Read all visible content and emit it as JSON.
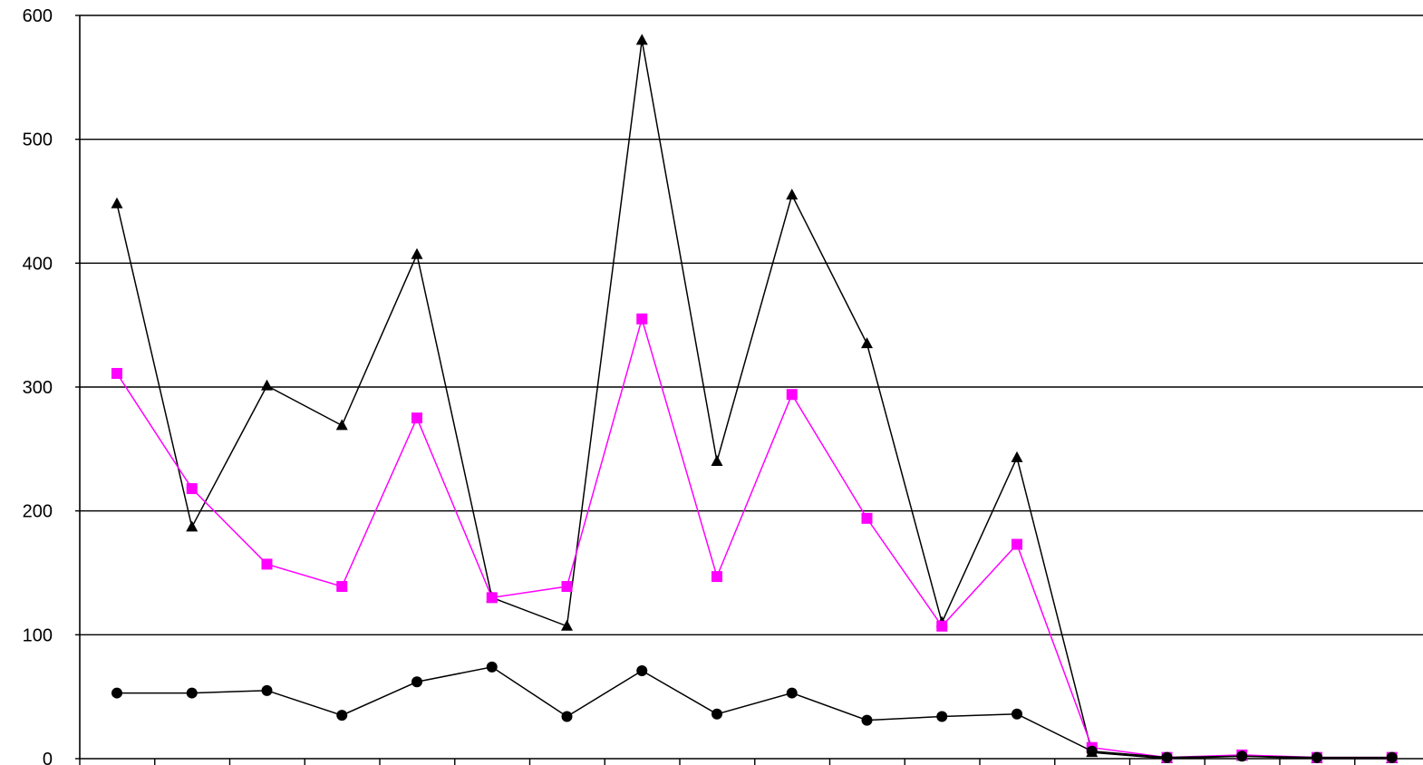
{
  "chart_data": {
    "type": "line",
    "title": "",
    "xlabel": "",
    "ylabel": "",
    "ylim": [
      0,
      600
    ],
    "yticks": [
      0,
      100,
      200,
      300,
      400,
      500,
      600
    ],
    "ytick_labels": [
      "0",
      "100",
      "200",
      "300",
      "400",
      "500",
      "600"
    ],
    "x": [
      1,
      2,
      3,
      4,
      5,
      6,
      7,
      8,
      9,
      10,
      11,
      12,
      13,
      14,
      15,
      16,
      17,
      18
    ],
    "grid": true,
    "legend": "none",
    "series": [
      {
        "marker": "triangle",
        "color": "#000000",
        "values": [
          448,
          187,
          301,
          269,
          407,
          130,
          107,
          580,
          240,
          455,
          335,
          110,
          243,
          5,
          0,
          2,
          0,
          0
        ]
      },
      {
        "marker": "square",
        "color": "#ff00ff",
        "values": [
          311,
          218,
          157,
          139,
          275,
          130,
          139,
          355,
          147,
          294,
          194,
          107,
          173,
          9,
          1,
          3,
          1,
          1
        ]
      },
      {
        "marker": "circle",
        "color": "#000000",
        "values": [
          53,
          53,
          55,
          35,
          62,
          74,
          34,
          71,
          36,
          53,
          31,
          34,
          36,
          6,
          1,
          2,
          1,
          1
        ]
      }
    ]
  }
}
